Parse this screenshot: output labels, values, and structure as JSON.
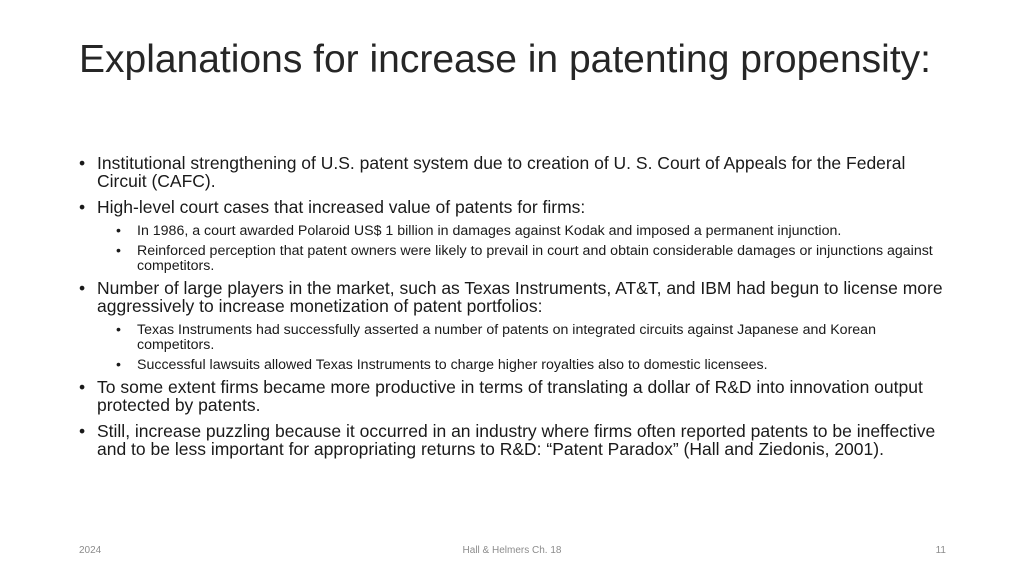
{
  "slide": {
    "title": "Explanations for increase in patenting propensity:",
    "bullets": [
      {
        "text": "Institutional strengthening of U.S. patent system due to creation of U. S. Court of Appeals for the Federal Circuit (CAFC).",
        "subs": []
      },
      {
        "text": "High-level court cases that increased value of patents for firms:",
        "subs": [
          "In 1986, a court awarded Polaroid US$ 1 billion in damages against Kodak and imposed a permanent injunction.",
          "Reinforced perception that patent owners were likely to prevail in court and obtain considerable damages or injunctions against competitors."
        ]
      },
      {
        "text": "Number of large players in the market, such as Texas Instruments, AT&T, and IBM had begun to license more aggressively to increase monetization of patent portfolios:",
        "subs": [
          "Texas Instruments had successfully asserted a number of patents on integrated circuits against Japanese and Korean competitors.",
          "Successful lawsuits allowed Texas Instruments to charge higher royalties also to domestic licensees."
        ]
      },
      {
        "text": "To some extent firms became more productive in terms of translating a dollar of R&D into innovation output protected by patents.",
        "subs": []
      },
      {
        "text": "Still, increase puzzling because it occurred in an industry where firms often reported patents to be ineffective and to be less important for appropriating returns to R&D: “Patent Paradox” (Hall and Ziedonis, 2001).",
        "subs": []
      }
    ],
    "bullet_glyph": "•"
  },
  "footer": {
    "date": "2024",
    "source": "Hall & Helmers Ch. 18",
    "page_number": "11"
  }
}
